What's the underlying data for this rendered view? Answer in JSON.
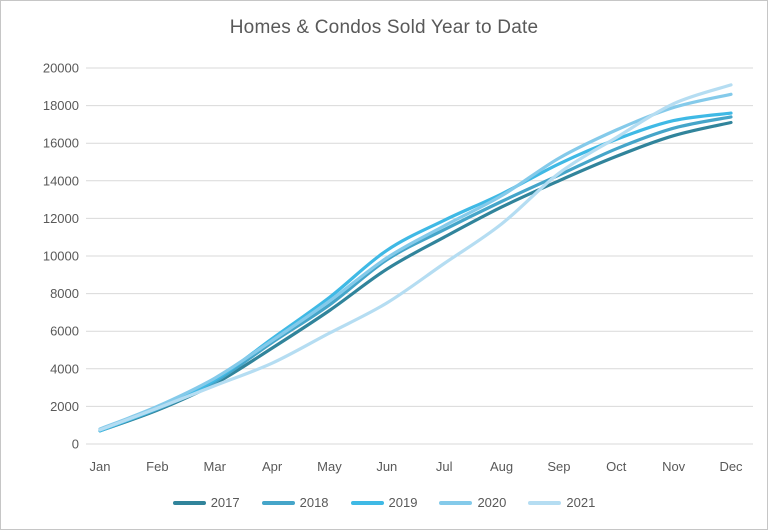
{
  "chart": {
    "title": "Homes & Condos Sold Year to Date"
  },
  "chart_data": {
    "type": "line",
    "title": "Homes & Condos Sold Year to Date",
    "categories": [
      "Jan",
      "Feb",
      "Mar",
      "Apr",
      "May",
      "Jun",
      "Jul",
      "Aug",
      "Sep",
      "Oct",
      "Nov",
      "Dec"
    ],
    "series": [
      {
        "name": "2017",
        "color": "#31849B",
        "values": [
          700,
          1800,
          3200,
          5100,
          7100,
          9300,
          11000,
          12600,
          14000,
          15300,
          16400,
          17100
        ]
      },
      {
        "name": "2018",
        "color": "#45A5C9",
        "values": [
          750,
          1850,
          3300,
          5400,
          7400,
          9800,
          11400,
          12900,
          14300,
          15700,
          16800,
          17400
        ]
      },
      {
        "name": "2019",
        "color": "#3FB9E5",
        "values": [
          700,
          1900,
          3400,
          5600,
          7800,
          10300,
          11900,
          13300,
          14900,
          16200,
          17200,
          17600
        ]
      },
      {
        "name": "2020",
        "color": "#84CAEA",
        "values": [
          800,
          2000,
          3500,
          5500,
          7600,
          9900,
          11600,
          13200,
          15200,
          16700,
          17900,
          18600
        ]
      },
      {
        "name": "2021",
        "color": "#B5DDF2",
        "values": [
          750,
          1900,
          3100,
          4300,
          5900,
          7500,
          9600,
          11700,
          14400,
          16300,
          18100,
          19100
        ]
      }
    ],
    "ylim": [
      0,
      20000
    ],
    "ytick_step": 2000,
    "grid": true,
    "smooth_lines": true,
    "legend_position": "bottom",
    "xlabel": "",
    "ylabel": ""
  },
  "style": {
    "gridline_color": "#D9D9D9",
    "axis_text_color": "#595959",
    "title_color": "#595959",
    "line_width": 3.2
  }
}
